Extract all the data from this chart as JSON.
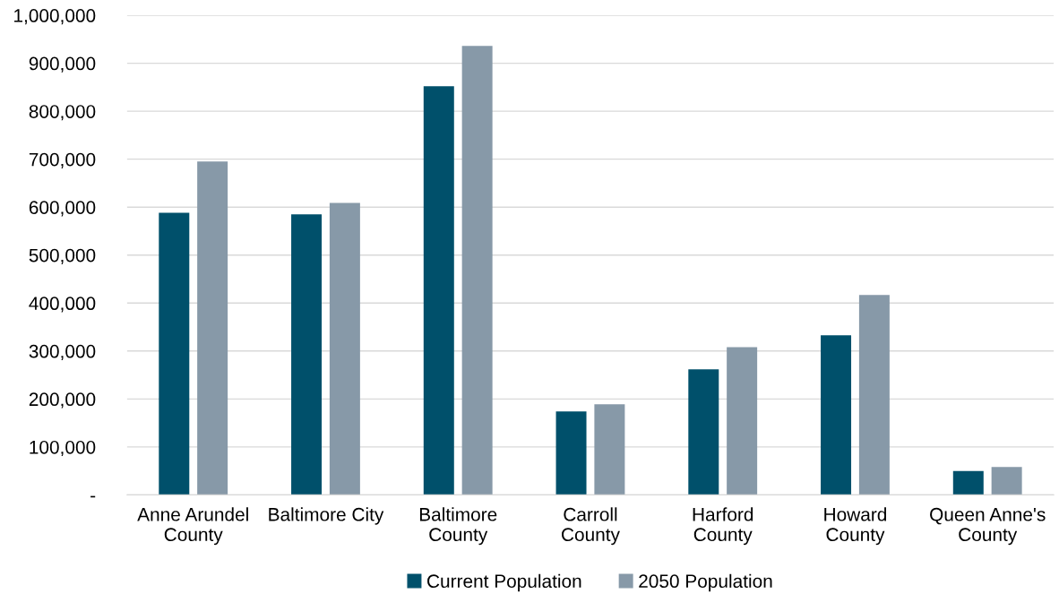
{
  "chart_data": {
    "type": "bar",
    "categories": [
      "Anne Arundel\nCounty",
      "Baltimore City",
      "Baltimore\nCounty",
      "Carroll\nCounty",
      "Harford\nCounty",
      "Howard\nCounty",
      "Queen Anne's\nCounty"
    ],
    "series": [
      {
        "name": "Current Population",
        "color": "#00506b",
        "values": [
          588000,
          585000,
          852000,
          174000,
          262000,
          333000,
          50000
        ]
      },
      {
        "name": "2050 Population",
        "color": "#8799a8",
        "values": [
          695000,
          609000,
          936000,
          189000,
          308000,
          417000,
          58000
        ]
      }
    ],
    "ylim": [
      0,
      1000000
    ],
    "yticks": [
      {
        "value": 0,
        "label": "-"
      },
      {
        "value": 100000,
        "label": "100,000"
      },
      {
        "value": 200000,
        "label": "200,000"
      },
      {
        "value": 300000,
        "label": "300,000"
      },
      {
        "value": 400000,
        "label": "400,000"
      },
      {
        "value": 500000,
        "label": "500,000"
      },
      {
        "value": 600000,
        "label": "600,000"
      },
      {
        "value": 700000,
        "label": "700,000"
      },
      {
        "value": 800000,
        "label": "800,000"
      },
      {
        "value": 900000,
        "label": "900,000"
      },
      {
        "value": 1000000,
        "label": "1,000,000"
      }
    ],
    "grid": "y",
    "legend": "bottom"
  }
}
